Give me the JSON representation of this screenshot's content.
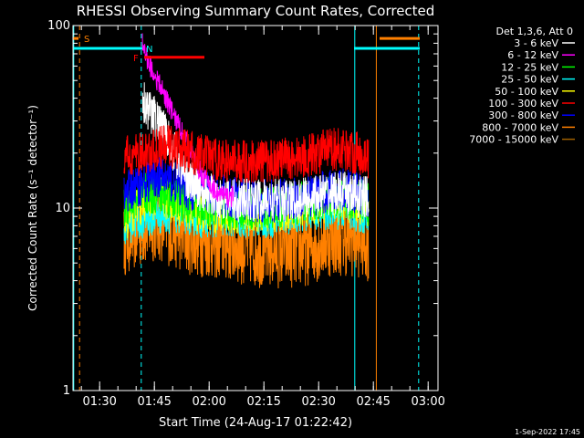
{
  "chart_data": {
    "type": "line",
    "title": "RHESSI Observing Summary Count Rates, Corrected",
    "ylabel": "Corrected Count Rate (s⁻¹ detector⁻¹)",
    "xlabel": "Start Time (24-Aug-17 01:22:42)",
    "yscale": "log",
    "ylim": [
      1,
      100
    ],
    "yticks": [
      {
        "v": 1,
        "label": "1"
      },
      {
        "v": 10,
        "label": "10"
      },
      {
        "v": 100,
        "label": "100"
      }
    ],
    "xlim_min": [
      0,
      100
    ],
    "xticks": [
      {
        "m": 7.3,
        "label": "01:30"
      },
      {
        "m": 22.3,
        "label": "01:45"
      },
      {
        "m": 37.3,
        "label": "02:00"
      },
      {
        "m": 52.3,
        "label": "02:15"
      },
      {
        "m": 67.3,
        "label": "02:30"
      },
      {
        "m": 82.3,
        "label": "02:45"
      },
      {
        "m": 97.3,
        "label": "03:00"
      }
    ],
    "legend_header": "Det 1,3,6, Att 0",
    "legend_position": "right",
    "series": [
      {
        "name": "3 - 6 keV",
        "color": "#ffffff",
        "start": 15,
        "end": 81,
        "points": [
          [
            15,
            null
          ],
          [
            17,
            null
          ],
          [
            19,
            40
          ],
          [
            21,
            34
          ],
          [
            23,
            30
          ],
          [
            25,
            26
          ],
          [
            27,
            22
          ],
          [
            29,
            18
          ],
          [
            31,
            15
          ],
          [
            33,
            13.5
          ],
          [
            35,
            12.5
          ],
          [
            37,
            12
          ],
          [
            40,
            11.5
          ],
          [
            45,
            11
          ],
          [
            50,
            11
          ],
          [
            55,
            11
          ],
          [
            60,
            11
          ],
          [
            65,
            11.5
          ],
          [
            70,
            12
          ],
          [
            75,
            12
          ],
          [
            79,
            11.5
          ],
          [
            81,
            11.5
          ]
        ]
      },
      {
        "name": "6 - 12 keV",
        "color": "#ff00ff",
        "start": 19,
        "end": 44,
        "points": [
          [
            19,
            80
          ],
          [
            20,
            68
          ],
          [
            22,
            55
          ],
          [
            24,
            46
          ],
          [
            26,
            38
          ],
          [
            28,
            31
          ],
          [
            30,
            26
          ],
          [
            32,
            21
          ],
          [
            34,
            17
          ],
          [
            36,
            14.5
          ],
          [
            38,
            13
          ],
          [
            40,
            12
          ],
          [
            42,
            11.5
          ],
          [
            44,
            11.5
          ]
        ]
      },
      {
        "name": "12 - 25 keV",
        "color": "#00ff00",
        "start": 14,
        "end": 81,
        "points": [
          [
            14,
            10
          ],
          [
            16,
            11
          ],
          [
            18,
            11.5
          ],
          [
            21,
            12
          ],
          [
            24,
            12
          ],
          [
            27,
            11.5
          ],
          [
            30,
            11
          ],
          [
            35,
            10.5
          ],
          [
            40,
            10
          ],
          [
            45,
            10
          ],
          [
            50,
            10
          ],
          [
            55,
            10
          ],
          [
            60,
            10.5
          ],
          [
            65,
            11
          ],
          [
            70,
            11.5
          ],
          [
            75,
            11.5
          ],
          [
            79,
            11
          ],
          [
            81,
            10.5
          ]
        ]
      },
      {
        "name": "25 - 50 keV",
        "color": "#00ffff",
        "start": 14,
        "end": 81,
        "points": [
          [
            14,
            8
          ],
          [
            16,
            8.5
          ],
          [
            20,
            9
          ],
          [
            25,
            9.5
          ],
          [
            30,
            9.5
          ],
          [
            35,
            9
          ],
          [
            40,
            9
          ],
          [
            45,
            9
          ],
          [
            50,
            9
          ],
          [
            55,
            9
          ],
          [
            60,
            9.5
          ],
          [
            65,
            10
          ],
          [
            70,
            10
          ],
          [
            75,
            10
          ],
          [
            79,
            9.5
          ],
          [
            81,
            9
          ]
        ]
      },
      {
        "name": "50 - 100 keV",
        "color": "#ffff00",
        "start": 14,
        "end": 81,
        "points": [
          [
            14,
            8.5
          ],
          [
            17,
            10
          ],
          [
            20,
            11
          ],
          [
            23,
            11.5
          ],
          [
            26,
            11
          ],
          [
            29,
            10.5
          ],
          [
            32,
            10
          ],
          [
            36,
            9.5
          ],
          [
            40,
            9.5
          ],
          [
            45,
            9.5
          ],
          [
            50,
            9.5
          ],
          [
            55,
            9.5
          ],
          [
            60,
            10
          ],
          [
            65,
            10.5
          ],
          [
            70,
            11
          ],
          [
            75,
            11
          ],
          [
            79,
            10.5
          ],
          [
            81,
            10
          ]
        ]
      },
      {
        "name": "100 - 300 keV",
        "color": "#ff0000",
        "start": 14,
        "end": 81,
        "points": [
          [
            14,
            19
          ],
          [
            17,
            19.5
          ],
          [
            20,
            20
          ],
          [
            23,
            21
          ],
          [
            26,
            22
          ],
          [
            29,
            21
          ],
          [
            33,
            20
          ],
          [
            37,
            19
          ],
          [
            42,
            18
          ],
          [
            47,
            18
          ],
          [
            52,
            18
          ],
          [
            57,
            18.5
          ],
          [
            62,
            19
          ],
          [
            67,
            20
          ],
          [
            71,
            21
          ],
          [
            75,
            21
          ],
          [
            79,
            19.5
          ],
          [
            81,
            19
          ]
        ]
      },
      {
        "name": "300 - 800 keV",
        "color": "#0000ff",
        "start": 14,
        "end": 81,
        "points": [
          [
            14,
            12
          ],
          [
            17,
            13
          ],
          [
            20,
            14
          ],
          [
            23,
            15
          ],
          [
            26,
            14.5
          ],
          [
            29,
            13.5
          ],
          [
            33,
            12.5
          ],
          [
            37,
            12
          ],
          [
            42,
            11.5
          ],
          [
            47,
            11
          ],
          [
            52,
            11
          ],
          [
            57,
            11
          ],
          [
            62,
            11.5
          ],
          [
            67,
            12
          ],
          [
            71,
            12.5
          ],
          [
            75,
            12.5
          ],
          [
            79,
            12
          ],
          [
            81,
            11.5
          ]
        ]
      },
      {
        "name": "800 - 7000 keV",
        "color": "#ff8000",
        "start": 14,
        "end": 81,
        "points": [
          [
            14,
            7
          ],
          [
            17,
            7.5
          ],
          [
            20,
            8
          ],
          [
            23,
            8.5
          ],
          [
            26,
            8
          ],
          [
            29,
            7.5
          ],
          [
            33,
            7
          ],
          [
            37,
            6.8
          ],
          [
            42,
            6.5
          ],
          [
            47,
            6.2
          ],
          [
            52,
            6
          ],
          [
            57,
            6
          ],
          [
            62,
            6
          ],
          [
            67,
            6.5
          ],
          [
            71,
            7
          ],
          [
            75,
            7
          ],
          [
            79,
            6.8
          ],
          [
            81,
            6.5
          ]
        ]
      },
      {
        "name": "7000 - 15000 keV",
        "color": "#a06000",
        "start": 0,
        "end": 0,
        "points": []
      }
    ],
    "hlines": [
      {
        "label": "S",
        "color": "#ff8000",
        "x0": 0,
        "x1": 1.5,
        "y": 85,
        "label_x": 3
      },
      {
        "label": "N",
        "color": "#00ffff",
        "x0": 0,
        "x1": 19,
        "y": 75,
        "label_x": 20
      },
      {
        "label": "F",
        "color": "#ff0000",
        "x0": 19.5,
        "x1": 36,
        "y": 67,
        "label_x": 16.5
      },
      {
        "label": "",
        "color": "#00ffff",
        "x0": 77,
        "x1": 95,
        "y": 75,
        "label_x": null
      },
      {
        "label": "",
        "color": "#ff8000",
        "x0": 84,
        "x1": 95,
        "y": 85,
        "label_x": null
      }
    ],
    "vlines": [
      {
        "x": 0.2,
        "color": "#00ffff",
        "style": "solid"
      },
      {
        "x": 1.8,
        "color": "#ff8000",
        "style": "dashed"
      },
      {
        "x": 18.7,
        "color": "#00ffff",
        "style": "dashed"
      },
      {
        "x": 77.2,
        "color": "#00ffff",
        "style": "solid"
      },
      {
        "x": 83.1,
        "color": "#ff8000",
        "style": "solid"
      },
      {
        "x": 94.7,
        "color": "#00ffff",
        "style": "dashed"
      }
    ],
    "footer_date": "1-Sep-2022 17:45"
  }
}
